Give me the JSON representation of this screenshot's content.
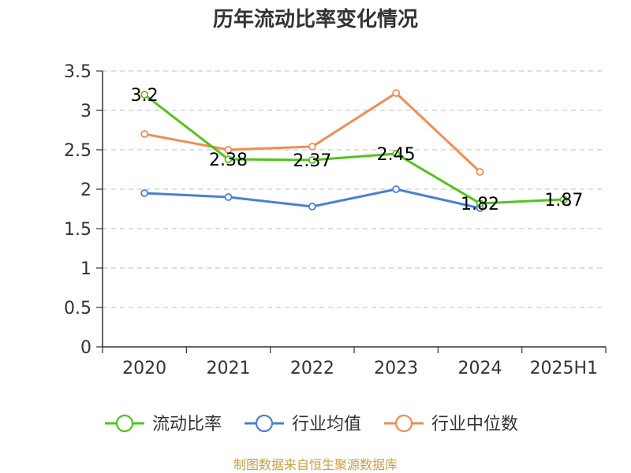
{
  "chart_data": {
    "type": "line",
    "title": "历年流动比率变化情况",
    "categories": [
      "2020",
      "2021",
      "2022",
      "2023",
      "2024",
      "2025H1"
    ],
    "ylim": [
      0,
      3.5
    ],
    "yticks": [
      "0",
      "0.5",
      "1",
      "1.5",
      "2",
      "2.5",
      "3",
      "3.5"
    ],
    "grid": true,
    "legend_position": "bottom",
    "series": [
      {
        "name": "流动比率",
        "color": "#52c41a",
        "values": [
          3.2,
          2.38,
          2.37,
          2.45,
          1.82,
          1.87
        ],
        "labels": [
          "3.2",
          "2.38",
          "2.37",
          "2.45",
          "1.82",
          "1.87"
        ]
      },
      {
        "name": "行业均值",
        "color": "#4a7fd8",
        "values": [
          1.95,
          1.9,
          1.78,
          2.0,
          1.76,
          null
        ]
      },
      {
        "name": "行业中位数",
        "color": "#f28c54",
        "values": [
          2.7,
          2.5,
          2.54,
          3.22,
          2.22,
          null
        ]
      }
    ]
  },
  "source_text": "制图数据来自恒生聚源数据库"
}
